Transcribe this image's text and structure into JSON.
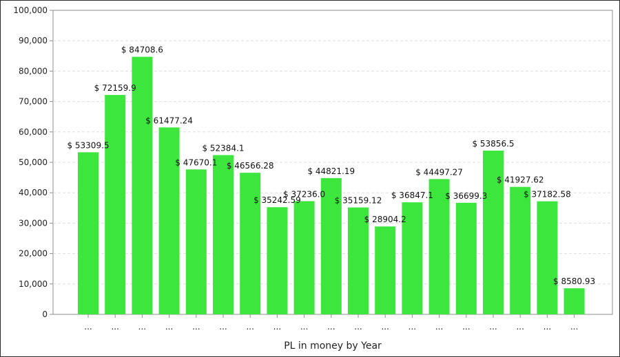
{
  "chart_data": {
    "type": "bar",
    "title": "",
    "xlabel": "PL in money by Year",
    "ylabel": "",
    "ylim": [
      0,
      100000
    ],
    "yticks": [
      0,
      10000,
      20000,
      30000,
      40000,
      50000,
      60000,
      70000,
      80000,
      90000,
      100000
    ],
    "ytick_labels": [
      "0",
      "10,000",
      "20,000",
      "30,000",
      "40,000",
      "50,000",
      "60,000",
      "70,000",
      "80,000",
      "90,000",
      "100,000"
    ],
    "grid": true,
    "bar_color": "#3de63d",
    "categories": [
      "...",
      "...",
      "...",
      "...",
      "...",
      "...",
      "...",
      "...",
      "...",
      "...",
      "...",
      "...",
      "...",
      "...",
      "...",
      "...",
      "...",
      "...",
      "..."
    ],
    "values": [
      53309.5,
      72159.9,
      84708.6,
      61477.24,
      47670.1,
      52384.1,
      46566.28,
      35242.59,
      37236.0,
      44821.19,
      35159.12,
      28904.2,
      36847.1,
      44497.27,
      36699.3,
      53856.5,
      41927.62,
      37182.58,
      8580.93
    ],
    "data_labels": [
      "$ 53309.5",
      "$ 72159.9",
      "$ 84708.6",
      "$ 61477.24",
      "$ 47670.1",
      "$ 52384.1",
      "$ 46566.28",
      "$ 35242.59",
      "$ 37236.0",
      "$ 44821.19",
      "$ 35159.12",
      "$ 28904.2",
      "$ 36847.1",
      "$ 44497.27",
      "$ 36699.3",
      "$ 53856.5",
      "$ 41927.62",
      "$ 37182.58",
      "$ 8580.93"
    ]
  }
}
